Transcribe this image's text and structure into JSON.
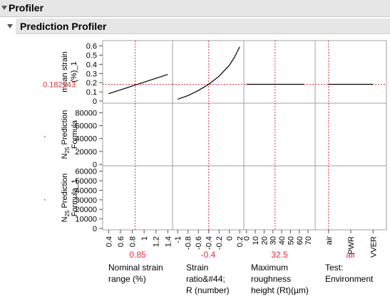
{
  "window": {
    "title": "Profiler"
  },
  "panel": {
    "title": "Prediction Profiler"
  },
  "colors": {
    "crosshair": "#e0303a",
    "curve": "#000000",
    "grid": "#a0a0a0"
  },
  "chart_data": {
    "type": "line",
    "title": "Prediction Profiler",
    "responses": [
      {
        "label": "mean strain (%)_1",
        "current_value": "0.182143",
        "ylim": [
          0,
          0.62
        ],
        "ticks": [
          "0",
          "0.1",
          "0.2",
          "0.3",
          "0.4",
          "0.5",
          "0.6"
        ]
      },
      {
        "label_parts": [
          "N",
          "25",
          " Prediction",
          "Formula"
        ],
        "current_value": "",
        "ylim": [
          0,
          86000
        ],
        "ticks": [
          "0",
          "20000",
          "40000",
          "60000",
          "80000"
        ]
      },
      {
        "label_parts": [
          "N",
          "25",
          " Prediction",
          "Formula_1"
        ],
        "current_value": "",
        "ylim": [
          0,
          62000
        ],
        "ticks": [
          "0",
          "10000",
          "20000",
          "30000",
          "40000",
          "50000",
          "60000"
        ]
      }
    ],
    "factors": [
      {
        "label_lines": [
          "Nominal strain",
          "range (%)"
        ],
        "current": "0.85",
        "current_x": 0.85,
        "xlim": [
          0.3,
          1.48
        ],
        "ticks": [
          "0.4",
          "0.6",
          "0.8",
          "1",
          "1.2",
          "1.4"
        ]
      },
      {
        "label_lines": [
          "Strain",
          "ratio&#44;",
          "R (number)"
        ],
        "current": "-0.4",
        "current_x": -0.4,
        "xlim": [
          -1.1,
          0.28
        ],
        "ticks": [
          "-1",
          "-0.8",
          "-0.6",
          "-0.4",
          "-0.2",
          "0",
          "0.2"
        ]
      },
      {
        "label_lines": [
          "Maximum",
          "roughness",
          "height (Rt)(µm)"
        ],
        "current": "32.5",
        "current_x": 32.5,
        "xlim": [
          -3,
          78
        ],
        "ticks": [
          "0",
          "10",
          "20",
          "30",
          "40",
          "50",
          "60",
          "70"
        ]
      },
      {
        "label_lines": [
          "Test:",
          "Environment"
        ],
        "current": "air",
        "current_x": 0,
        "xlim": [
          -0.6,
          2.6
        ],
        "ticks": [
          "air",
          "PWR",
          "VVER"
        ]
      }
    ],
    "series": [
      {
        "name": "",
        "response": 0,
        "factor": 0,
        "x": [
          0.4,
          1.4
        ],
        "y": [
          0.08,
          0.29
        ]
      },
      {
        "name": "",
        "response": 0,
        "factor": 1,
        "x": [
          -1.0,
          -0.8,
          -0.6,
          -0.4,
          -0.2,
          0.0,
          0.1,
          0.2
        ],
        "y": [
          0.02,
          0.06,
          0.115,
          0.182,
          0.27,
          0.39,
          0.48,
          0.59
        ]
      },
      {
        "name": "",
        "response": 0,
        "factor": 2,
        "x": [
          0,
          65
        ],
        "y": [
          0.182,
          0.182
        ]
      },
      {
        "name": "",
        "response": 0,
        "factor": 3,
        "x": [
          0,
          2
        ],
        "y": [
          0.182,
          0.182
        ]
      }
    ]
  }
}
